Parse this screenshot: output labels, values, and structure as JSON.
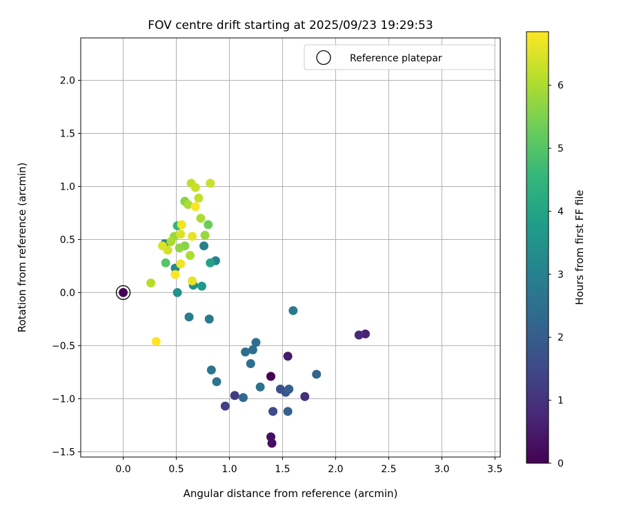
{
  "chart_data": {
    "type": "scatter",
    "title": "FOV centre drift starting at 2025/09/23 19:29:53",
    "xlabel": "Angular distance from reference (arcmin)",
    "ylabel": "Rotation from reference (arcmin)",
    "xlim": [
      -0.4,
      3.55
    ],
    "ylim": [
      -1.55,
      2.4
    ],
    "xticks": [
      0.0,
      0.5,
      1.0,
      1.5,
      2.0,
      2.5,
      3.0,
      3.5
    ],
    "xtick_labels": [
      "0.0",
      "0.5",
      "1.0",
      "1.5",
      "2.0",
      "2.5",
      "3.0",
      "3.5"
    ],
    "yticks": [
      -1.5,
      -1.0,
      -0.5,
      0.0,
      0.5,
      1.0,
      1.5,
      2.0
    ],
    "ytick_labels": [
      "−1.5",
      "−1.0",
      "−0.5",
      "0.0",
      "0.5",
      "1.0",
      "1.5",
      "2.0"
    ],
    "grid": true,
    "legend": {
      "position": "top-right",
      "entries": [
        "Reference platepar"
      ]
    },
    "reference_point": {
      "x": 0.0,
      "y": 0.0,
      "hours": 0.0
    },
    "colorbar": {
      "label": "Hours from first FF file",
      "colormap": "viridis",
      "range": [
        0,
        6.85
      ],
      "ticks": [
        0,
        1,
        2,
        3,
        4,
        5,
        6
      ],
      "tick_labels": [
        "0",
        "1",
        "2",
        "3",
        "4",
        "5",
        "6"
      ]
    },
    "points": [
      {
        "x": 0.0,
        "y": 0.0,
        "h": 0.0
      },
      {
        "x": 1.39,
        "y": -0.79,
        "h": 0.0
      },
      {
        "x": 1.39,
        "y": -1.36,
        "h": 0.3
      },
      {
        "x": 1.4,
        "y": -1.42,
        "h": 0.3
      },
      {
        "x": 1.55,
        "y": -0.6,
        "h": 0.5
      },
      {
        "x": 2.28,
        "y": -0.39,
        "h": 0.7
      },
      {
        "x": 2.22,
        "y": -0.4,
        "h": 0.8
      },
      {
        "x": 1.71,
        "y": -0.98,
        "h": 0.9
      },
      {
        "x": 1.05,
        "y": -0.97,
        "h": 1.2
      },
      {
        "x": 0.96,
        "y": -1.07,
        "h": 1.3
      },
      {
        "x": 1.41,
        "y": -1.12,
        "h": 1.5
      },
      {
        "x": 1.48,
        "y": -0.91,
        "h": 1.7
      },
      {
        "x": 1.53,
        "y": -0.94,
        "h": 1.8
      },
      {
        "x": 1.56,
        "y": -0.91,
        "h": 2.0
      },
      {
        "x": 1.55,
        "y": -1.12,
        "h": 2.1
      },
      {
        "x": 1.82,
        "y": -0.77,
        "h": 2.2
      },
      {
        "x": 1.13,
        "y": -0.99,
        "h": 2.3
      },
      {
        "x": 1.22,
        "y": -0.54,
        "h": 2.4
      },
      {
        "x": 1.15,
        "y": -0.56,
        "h": 2.5
      },
      {
        "x": 1.25,
        "y": -0.47,
        "h": 2.5
      },
      {
        "x": 1.2,
        "y": -0.67,
        "h": 2.5
      },
      {
        "x": 1.29,
        "y": -0.89,
        "h": 2.6
      },
      {
        "x": 0.88,
        "y": -0.84,
        "h": 2.6
      },
      {
        "x": 0.83,
        "y": -0.73,
        "h": 2.7
      },
      {
        "x": 1.6,
        "y": -0.17,
        "h": 2.8
      },
      {
        "x": 0.81,
        "y": -0.25,
        "h": 2.8
      },
      {
        "x": 0.62,
        "y": -0.23,
        "h": 2.9
      },
      {
        "x": 0.87,
        "y": 0.3,
        "h": 3.0
      },
      {
        "x": 0.76,
        "y": 0.44,
        "h": 3.0
      },
      {
        "x": 0.39,
        "y": 0.46,
        "h": 3.0
      },
      {
        "x": 0.49,
        "y": 0.23,
        "h": 3.2
      },
      {
        "x": 0.66,
        "y": 0.07,
        "h": 3.4
      },
      {
        "x": 0.51,
        "y": 0.0,
        "h": 3.5
      },
      {
        "x": 0.74,
        "y": 0.06,
        "h": 3.7
      },
      {
        "x": 0.82,
        "y": 0.28,
        "h": 3.9
      },
      {
        "x": 0.51,
        "y": 0.63,
        "h": 4.5
      },
      {
        "x": 0.4,
        "y": 0.28,
        "h": 5.0
      },
      {
        "x": 0.8,
        "y": 0.64,
        "h": 5.3
      },
      {
        "x": 0.58,
        "y": 0.86,
        "h": 5.6
      },
      {
        "x": 0.58,
        "y": 0.44,
        "h": 5.6
      },
      {
        "x": 0.53,
        "y": 0.42,
        "h": 5.7
      },
      {
        "x": 0.77,
        "y": 0.54,
        "h": 5.8
      },
      {
        "x": 0.48,
        "y": 0.53,
        "h": 5.8
      },
      {
        "x": 0.61,
        "y": 0.83,
        "h": 6.0
      },
      {
        "x": 0.73,
        "y": 0.7,
        "h": 6.0
      },
      {
        "x": 0.45,
        "y": 0.48,
        "h": 6.0
      },
      {
        "x": 0.63,
        "y": 0.35,
        "h": 6.0
      },
      {
        "x": 0.26,
        "y": 0.09,
        "h": 6.1
      },
      {
        "x": 0.71,
        "y": 0.89,
        "h": 6.2
      },
      {
        "x": 0.64,
        "y": 1.03,
        "h": 6.2
      },
      {
        "x": 0.68,
        "y": 0.99,
        "h": 6.3
      },
      {
        "x": 0.82,
        "y": 1.03,
        "h": 6.3
      },
      {
        "x": 0.42,
        "y": 0.4,
        "h": 6.4
      },
      {
        "x": 0.37,
        "y": 0.44,
        "h": 6.5
      },
      {
        "x": 0.54,
        "y": 0.55,
        "h": 6.5
      },
      {
        "x": 0.65,
        "y": 0.53,
        "h": 6.6
      },
      {
        "x": 0.65,
        "y": 0.11,
        "h": 6.6
      },
      {
        "x": 0.55,
        "y": 0.64,
        "h": 6.7
      },
      {
        "x": 0.54,
        "y": 0.27,
        "h": 6.7
      },
      {
        "x": 0.49,
        "y": 0.17,
        "h": 6.8
      },
      {
        "x": 0.68,
        "y": 0.81,
        "h": 6.8
      },
      {
        "x": 0.31,
        "y": -0.46,
        "h": 6.85
      }
    ]
  }
}
